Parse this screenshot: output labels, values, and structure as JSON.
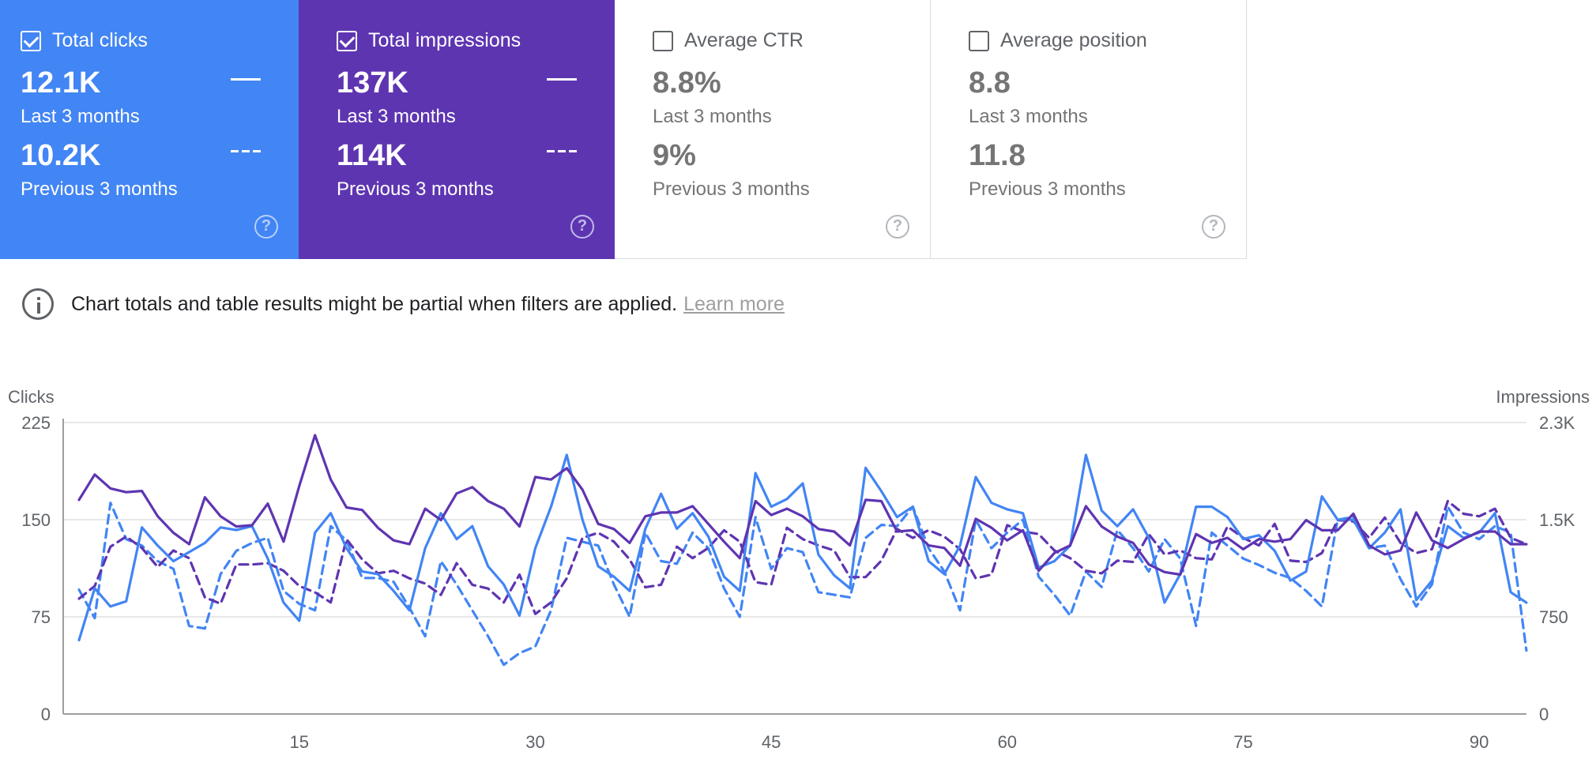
{
  "cards": [
    {
      "title": "Total clicks",
      "checked": true,
      "current_value": "12.1K",
      "current_label": "Last 3 months",
      "previous_value": "10.2K",
      "previous_label": "Previous 3 months"
    },
    {
      "title": "Total impressions",
      "checked": true,
      "current_value": "137K",
      "current_label": "Last 3 months",
      "previous_value": "114K",
      "previous_label": "Previous 3 months"
    },
    {
      "title": "Average CTR",
      "checked": false,
      "current_value": "8.8%",
      "current_label": "Last 3 months",
      "previous_value": "9%",
      "previous_label": "Previous 3 months"
    },
    {
      "title": "Average position",
      "checked": false,
      "current_value": "8.8",
      "current_label": "Last 3 months",
      "previous_value": "11.8",
      "previous_label": "Previous 3 months"
    }
  ],
  "help_glyph": "?",
  "notice": {
    "text": "Chart totals and table results might be partial when filters are applied.",
    "link": "Learn more"
  },
  "colors": {
    "clicks": "#4285f4",
    "impressions": "#5e35b1",
    "grid": "#e0e0e0"
  },
  "chart_data": {
    "type": "line",
    "ylabel_left": "Clicks",
    "ylabel_right": "Impressions",
    "y_left_ticks": [
      "0",
      "75",
      "150",
      "225"
    ],
    "y_left_range": [
      0,
      225
    ],
    "y_right_ticks": [
      "0",
      "750",
      "1.5K",
      "2.3K"
    ],
    "y_right_range": [
      0,
      2300
    ],
    "x_ticks": [
      "15",
      "30",
      "45",
      "60",
      "75",
      "90"
    ],
    "x_tick_values": [
      15,
      30,
      45,
      60,
      75,
      90
    ],
    "x_range": [
      1,
      92
    ],
    "grid": true,
    "series": [
      {
        "name": "Total clicks",
        "style": "solid",
        "axis": "left",
        "values": [
          57,
          97,
          83,
          87,
          144,
          130,
          118,
          125,
          132,
          144,
          142,
          145,
          120,
          86,
          72,
          140,
          155,
          128,
          110,
          108,
          95,
          80,
          128,
          155,
          135,
          145,
          114,
          100,
          76,
          128,
          160,
          200,
          150,
          114,
          106,
          95,
          143,
          170,
          143,
          155,
          137,
          106,
          95,
          186,
          160,
          166,
          178,
          123,
          107,
          97,
          190,
          172,
          152,
          160,
          118,
          108,
          130,
          183,
          163,
          158,
          155,
          113,
          118,
          130,
          200,
          157,
          145,
          158,
          136,
          86,
          108,
          160,
          160,
          152,
          135,
          138,
          126,
          103,
          110,
          168,
          150,
          150,
          128,
          140,
          158,
          88,
          103,
          145,
          136,
          140,
          155,
          94,
          86
        ]
      },
      {
        "name": "Total impressions",
        "style": "solid",
        "axis": "right",
        "values": [
          1690,
          1890,
          1780,
          1750,
          1760,
          1560,
          1430,
          1340,
          1710,
          1560,
          1480,
          1490,
          1660,
          1360,
          1800,
          2200,
          1850,
          1630,
          1610,
          1470,
          1370,
          1340,
          1620,
          1530,
          1740,
          1790,
          1680,
          1620,
          1480,
          1870,
          1850,
          1940,
          1770,
          1500,
          1460,
          1350,
          1560,
          1590,
          1590,
          1640,
          1500,
          1360,
          1230,
          1680,
          1570,
          1620,
          1560,
          1460,
          1440,
          1330,
          1690,
          1680,
          1440,
          1450,
          1330,
          1310,
          1170,
          1540,
          1470,
          1370,
          1450,
          1130,
          1270,
          1330,
          1640,
          1480,
          1400,
          1350,
          1180,
          1120,
          1100,
          1420,
          1350,
          1390,
          1300,
          1380,
          1360,
          1380,
          1530,
          1450,
          1450,
          1580,
          1330,
          1260,
          1290,
          1590,
          1370,
          1310,
          1380,
          1440,
          1440,
          1340,
          1340
        ]
      },
      {
        "name": "Total clicks (Previous 3 months)",
        "style": "dashed",
        "axis": "left",
        "values": [
          96,
          74,
          163,
          135,
          130,
          118,
          112,
          68,
          66,
          108,
          126,
          132,
          136,
          95,
          85,
          80,
          145,
          134,
          105,
          105,
          102,
          82,
          60,
          118,
          100,
          80,
          60,
          38,
          47,
          52,
          80,
          136,
          133,
          130,
          100,
          75,
          140,
          118,
          116,
          140,
          128,
          97,
          75,
          152,
          112,
          128,
          125,
          94,
          92,
          90,
          136,
          146,
          145,
          160,
          128,
          110,
          80,
          150,
          128,
          140,
          150,
          106,
          92,
          76,
          110,
          98,
          142,
          128,
          110,
          135,
          120,
          68,
          140,
          130,
          120,
          115,
          109,
          105,
          95,
          83,
          150,
          152,
          128,
          130,
          104,
          83,
          100,
          160,
          140,
          135,
          145,
          140,
          49
        ]
      },
      {
        "name": "Total impressions (Previous 3 months)",
        "style": "dashed",
        "axis": "right",
        "values": [
          910,
          1010,
          1320,
          1400,
          1310,
          1160,
          1290,
          1230,
          920,
          870,
          1180,
          1180,
          1190,
          1130,
          1010,
          960,
          880,
          1380,
          1220,
          1110,
          1130,
          1070,
          1030,
          940,
          1190,
          1020,
          990,
          880,
          1100,
          790,
          880,
          1070,
          1390,
          1430,
          1360,
          1220,
          1000,
          1020,
          1320,
          1230,
          1310,
          1450,
          1360,
          1040,
          1020,
          1470,
          1380,
          1330,
          1290,
          1080,
          1080,
          1210,
          1460,
          1390,
          1450,
          1400,
          1300,
          1070,
          1100,
          1490,
          1440,
          1420,
          1290,
          1230,
          1130,
          1110,
          1210,
          1200,
          1420,
          1260,
          1290,
          1230,
          1220,
          1480,
          1390,
          1330,
          1500,
          1210,
          1200,
          1270,
          1530,
          1520,
          1390,
          1550,
          1350,
          1270,
          1300,
          1680,
          1580,
          1560,
          1620,
          1390,
          1340
        ]
      }
    ]
  }
}
